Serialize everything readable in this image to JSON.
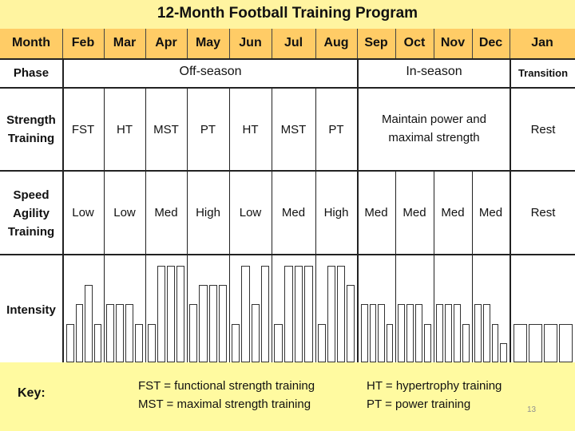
{
  "title": "12-Month Football Training Program",
  "header": {
    "corner": "Month",
    "months": [
      "Feb",
      "Mar",
      "Apr",
      "May",
      "Jun",
      "Jul",
      "Aug",
      "Sep",
      "Oct",
      "Nov",
      "Dec",
      "Jan"
    ]
  },
  "rows": {
    "phase": {
      "label": "Phase",
      "off_season": "Off-season",
      "in_season": "In-season",
      "transition": "Transition"
    },
    "strength": {
      "label_line1": "Strength",
      "label_line2": "Training",
      "values": [
        "FST",
        "HT",
        "MST",
        "PT",
        "HT",
        "MST",
        "PT"
      ],
      "in_season_line1": "Maintain power and",
      "in_season_line2": "maximal strength",
      "jan": "Rest"
    },
    "speed": {
      "label_line1": "Speed",
      "label_line2": "Agility",
      "label_line3": "Training",
      "values": [
        "Low",
        "Low",
        "Med",
        "High",
        "Low",
        "Med",
        "High",
        "Med",
        "Med",
        "Med",
        "Med",
        "Rest"
      ]
    },
    "intensity": {
      "label": "Intensity",
      "bar_levels": [
        [
          2,
          3,
          4,
          2
        ],
        [
          3,
          3,
          3,
          2
        ],
        [
          2,
          5,
          5,
          5
        ],
        [
          3,
          4,
          4,
          4
        ],
        [
          2,
          5,
          3,
          5
        ],
        [
          2,
          5,
          5,
          5
        ],
        [
          2,
          5,
          5,
          4
        ],
        [
          3,
          3,
          3,
          2
        ],
        [
          3,
          3,
          3,
          2
        ],
        [
          3,
          3,
          3,
          2
        ],
        [
          3,
          3,
          2,
          1
        ],
        [
          2,
          2,
          2,
          2
        ]
      ],
      "level_scale_max": 5
    }
  },
  "key": {
    "label": "Key:",
    "fst": "FST = functional strength training",
    "ht": "HT = hypertrophy training",
    "mst": "MST = maximal strength training",
    "pt": "PT = power training"
  },
  "page_number": "13",
  "colors": {
    "title_bg": "#fff4a0",
    "header_bg": "#ffcc66",
    "key_bg": "#fffaa0",
    "grid": "#222222"
  }
}
